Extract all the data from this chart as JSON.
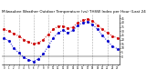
{
  "title": "Milwaukee Weather Outdoor Temperature (vs) THSW Index per Hour (Last 24 Hours)",
  "hours": [
    0,
    1,
    2,
    3,
    4,
    5,
    6,
    7,
    8,
    9,
    10,
    11,
    12,
    13,
    14,
    15,
    16,
    17,
    18,
    19,
    20,
    21,
    22,
    23
  ],
  "temp": [
    32,
    30,
    27,
    24,
    20,
    17,
    15,
    16,
    20,
    26,
    32,
    36,
    36,
    33,
    35,
    40,
    43,
    44,
    42,
    37,
    32,
    28,
    24,
    22
  ],
  "thsw": [
    22,
    18,
    10,
    4,
    -1,
    -4,
    -6,
    -3,
    3,
    12,
    22,
    28,
    31,
    28,
    31,
    37,
    40,
    41,
    38,
    32,
    25,
    18,
    12,
    9
  ],
  "temp_color": "#cc0000",
  "thsw_color": "#0000cc",
  "background": "#ffffff",
  "ylim": [
    -10,
    50
  ],
  "yticks": [
    0,
    5,
    10,
    15,
    20,
    25,
    30,
    35,
    40,
    45
  ],
  "grid_color": "#aaaaaa",
  "title_fontsize": 3.0
}
